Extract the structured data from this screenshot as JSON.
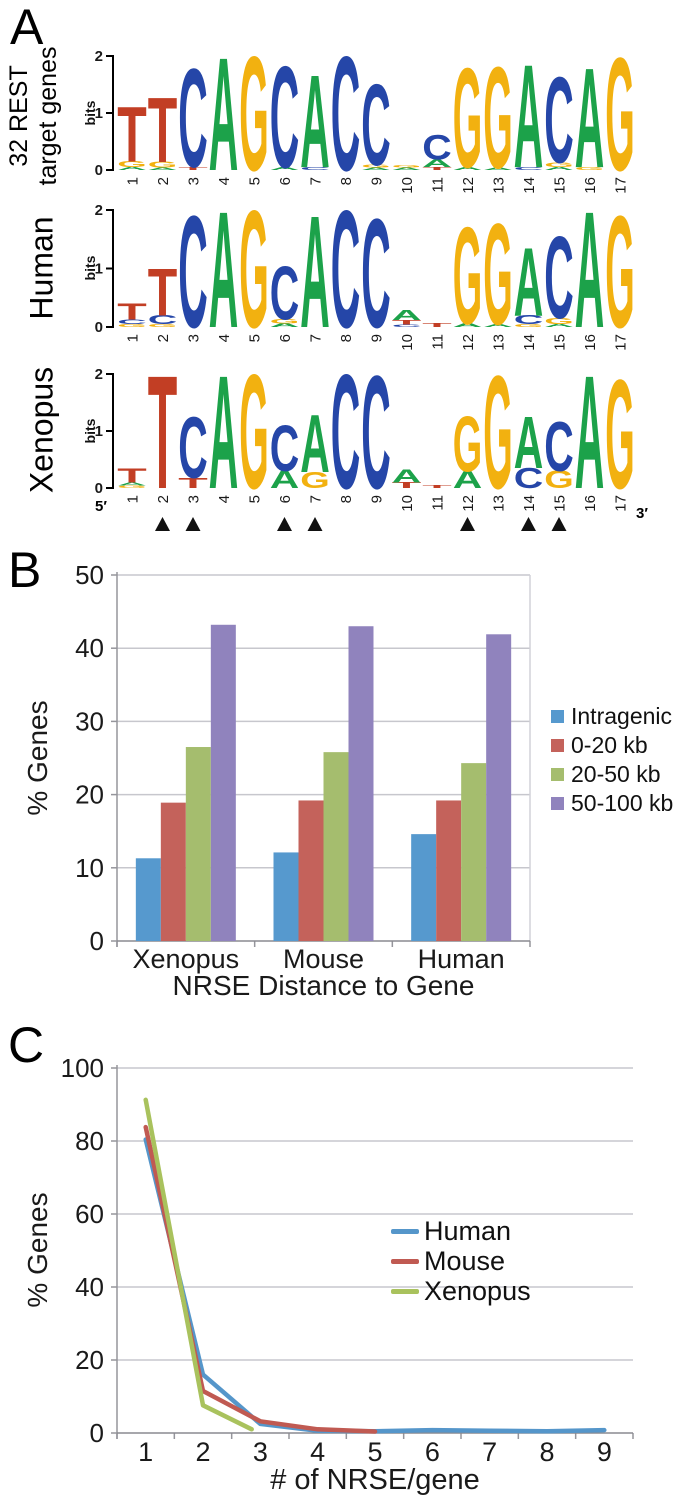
{
  "figure": {
    "panelA": {
      "label": "A",
      "bits_label": "bits",
      "y_ticks": [
        "2",
        "1",
        "0"
      ],
      "position_labels": [
        "1",
        "2",
        "3",
        "4",
        "5",
        "6",
        "7",
        "8",
        "9",
        "10",
        "11",
        "12",
        "13",
        "14",
        "15",
        "16",
        "17"
      ],
      "five_prime": "5′",
      "three_prime": "3′",
      "arrowhead_positions": [
        2,
        3,
        6,
        7,
        12,
        14,
        15
      ],
      "base_colors": {
        "A": "#1CA24A",
        "C": "#2546A8",
        "G": "#F2B110",
        "T": "#C23E24"
      },
      "logos": [
        {
          "title": "32 REST target genes",
          "title_lines": [
            "32 REST",
            "target genes"
          ],
          "stacks": [
            [
              [
                "T",
                0.95
              ],
              [
                "G",
                0.1
              ],
              [
                "A",
                0.05
              ]
            ],
            [
              [
                "T",
                1.12
              ],
              [
                "G",
                0.1
              ],
              [
                "A",
                0.04
              ]
            ],
            [
              [
                "C",
                1.7
              ],
              [
                "T",
                0.06
              ]
            ],
            [
              [
                "A",
                1.95
              ]
            ],
            [
              [
                "G",
                1.97
              ]
            ],
            [
              [
                "C",
                1.75
              ],
              [
                "A",
                0.05
              ]
            ],
            [
              [
                "A",
                1.6
              ],
              [
                "C",
                0.05
              ]
            ],
            [
              [
                "C",
                1.97
              ]
            ],
            [
              [
                "C",
                1.4
              ],
              [
                "G",
                0.05
              ],
              [
                "A",
                0.04
              ]
            ],
            [
              [
                "G",
                0.04
              ],
              [
                "A",
                0.04
              ]
            ],
            [
              [
                "C",
                0.42
              ],
              [
                "A",
                0.13
              ],
              [
                "T",
                0.05
              ]
            ],
            [
              [
                "G",
                1.72
              ],
              [
                "A",
                0.05
              ]
            ],
            [
              [
                "G",
                1.75
              ],
              [
                "A",
                0.04
              ]
            ],
            [
              [
                "A",
                1.78
              ],
              [
                "C",
                0.05
              ]
            ],
            [
              [
                "C",
                1.48
              ],
              [
                "G",
                0.08
              ],
              [
                "A",
                0.05
              ]
            ],
            [
              [
                "A",
                1.72
              ],
              [
                "G",
                0.05
              ]
            ],
            [
              [
                "G",
                1.95
              ]
            ]
          ]
        },
        {
          "title": "Human",
          "title_lines": [
            "Human"
          ],
          "stacks": [
            [
              [
                "T",
                0.27
              ],
              [
                "C",
                0.08
              ],
              [
                "G",
                0.05
              ]
            ],
            [
              [
                "T",
                0.8
              ],
              [
                "C",
                0.15
              ],
              [
                "G",
                0.05
              ]
            ],
            [
              [
                "C",
                1.88
              ]
            ],
            [
              [
                "A",
                1.95
              ]
            ],
            [
              [
                "G",
                1.97
              ]
            ],
            [
              [
                "C",
                0.9
              ],
              [
                "G",
                0.07
              ],
              [
                "A",
                0.06
              ]
            ],
            [
              [
                "A",
                1.88
              ]
            ],
            [
              [
                "C",
                1.97
              ]
            ],
            [
              [
                "C",
                1.83
              ]
            ],
            [
              [
                "A",
                0.17
              ],
              [
                "T",
                0.08
              ],
              [
                "C",
                0.04
              ]
            ],
            [
              [
                "T",
                0.06
              ]
            ],
            [
              [
                "G",
                1.63
              ],
              [
                "A",
                0.06
              ]
            ],
            [
              [
                "G",
                1.7
              ],
              [
                "A",
                0.05
              ]
            ],
            [
              [
                "A",
                1.15
              ],
              [
                "C",
                0.15
              ],
              [
                "G",
                0.05
              ]
            ],
            [
              [
                "C",
                1.38
              ],
              [
                "G",
                0.1
              ],
              [
                "A",
                0.05
              ]
            ],
            [
              [
                "A",
                1.95
              ]
            ],
            [
              [
                "G",
                1.88
              ]
            ]
          ]
        },
        {
          "title": "Xenopus",
          "title_lines": [
            "Xenopus"
          ],
          "stacks": [
            [
              [
                "T",
                0.25
              ],
              [
                "A",
                0.06
              ],
              [
                "G",
                0.04
              ]
            ],
            [
              [
                "T",
                1.95
              ]
            ],
            [
              [
                "C",
                1.05
              ],
              [
                "T",
                0.18
              ]
            ],
            [
              [
                "A",
                1.95
              ]
            ],
            [
              [
                "G",
                1.97
              ]
            ],
            [
              [
                "C",
                0.8
              ],
              [
                "A",
                0.3
              ]
            ],
            [
              [
                "A",
                1.0
              ],
              [
                "G",
                0.28
              ]
            ],
            [
              [
                "C",
                1.97
              ]
            ],
            [
              [
                "C",
                1.95
              ]
            ],
            [
              [
                "A",
                0.22
              ],
              [
                "T",
                0.1
              ]
            ],
            [
              [
                "T",
                0.06
              ]
            ],
            [
              [
                "G",
                0.95
              ],
              [
                "A",
                0.3
              ]
            ],
            [
              [
                "G",
                1.95
              ]
            ],
            [
              [
                "A",
                0.9
              ],
              [
                "C",
                0.35
              ]
            ],
            [
              [
                "C",
                0.85
              ],
              [
                "G",
                0.3
              ]
            ],
            [
              [
                "A",
                1.95
              ]
            ],
            [
              [
                "G",
                1.88
              ]
            ]
          ]
        }
      ]
    },
    "panelB": {
      "label": "B"
    },
    "panelC": {
      "label": "C"
    }
  },
  "chart_data": [
    {
      "panel": "B",
      "type": "bar",
      "title": "",
      "xlabel": "NRSE Distance to Gene",
      "ylabel": "% Genes",
      "categories": [
        "Xenopus",
        "Mouse",
        "Human"
      ],
      "series": [
        {
          "name": "Intragenic",
          "color": "#5699CE",
          "values": [
            11.3,
            12.1,
            14.6
          ]
        },
        {
          "name": "0-20 kb",
          "color": "#C4625B",
          "values": [
            18.9,
            19.2,
            19.2
          ]
        },
        {
          "name": "20-50 kb",
          "color": "#A5BD6E",
          "values": [
            26.5,
            25.8,
            24.3
          ]
        },
        {
          "name": "50-100 kb",
          "color": "#9083BD",
          "values": [
            43.2,
            43.0,
            41.9
          ]
        }
      ],
      "ylim": [
        0,
        50
      ],
      "y_ticks": [
        0,
        10,
        20,
        30,
        40,
        50
      ],
      "grid": true,
      "legend_position": "right"
    },
    {
      "panel": "C",
      "type": "line",
      "title": "",
      "xlabel": "# of NRSE/gene",
      "ylabel": "% Genes",
      "x_ticks": [
        1,
        2,
        3,
        4,
        5,
        6,
        7,
        8,
        9
      ],
      "series": [
        {
          "name": "Human",
          "color": "#5596CA",
          "x": [
            1,
            2,
            3,
            4,
            5,
            6,
            7,
            8,
            9
          ],
          "values": [
            80.4,
            16.0,
            2.5,
            0.6,
            0.5,
            0.8,
            0.6,
            0.5,
            0.8
          ]
        },
        {
          "name": "Mouse",
          "color": "#C05A52",
          "x": [
            1,
            2,
            3,
            4,
            5
          ],
          "values": [
            83.8,
            11.5,
            3.2,
            1.0,
            0.4
          ]
        },
        {
          "name": "Xenopus",
          "color": "#A9C25D",
          "x": [
            1,
            2,
            2.85
          ],
          "values": [
            91.3,
            7.6,
            1.0
          ]
        }
      ],
      "ylim": [
        0,
        100
      ],
      "y_ticks": [
        0,
        20,
        40,
        60,
        80,
        100
      ],
      "grid": true,
      "legend_position": "inside-right"
    }
  ]
}
